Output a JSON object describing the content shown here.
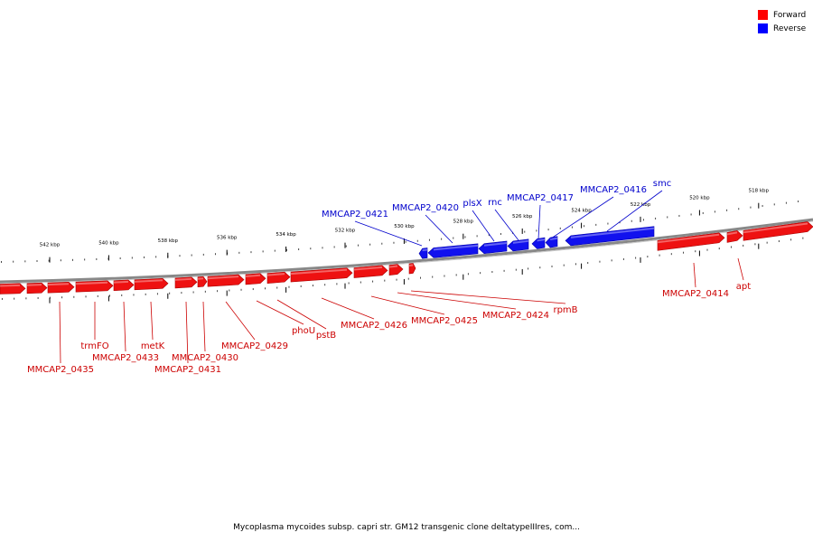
{
  "legend": [
    {
      "label": "Forward",
      "color": "#ff0000"
    },
    {
      "label": "Reverse",
      "color": "#0000ff"
    }
  ],
  "caption": "Mycoplasma mycoides subsp. capri str. GM12 transgenic clone deltatypeIIIres, com...",
  "colors": {
    "forward": "#ee1111",
    "reverse": "#1111ee",
    "forward_label": "#cc0000",
    "reverse_label": "#0000cc",
    "backbone": "#888888"
  },
  "ticks": [
    "542 kbp",
    "540 kbp",
    "538 kbp",
    "536 kbp",
    "534 kbp",
    "532 kbp",
    "530 kbp",
    "528 kbp",
    "526 kbp",
    "524 kbp",
    "522 kbp",
    "520 kbp",
    "518 kbp"
  ],
  "labels": {
    "forward": [
      "MMCAP2_0435",
      "trmFO",
      "MMCAP2_0433",
      "metK",
      "MMCAP2_0431",
      "MMCAP2_0430",
      "MMCAP2_0429",
      "phoU",
      "pstB",
      "MMCAP2_0426",
      "MMCAP2_0425",
      "MMCAP2_0424",
      "rpmB",
      "MMCAP2_0414",
      "apt"
    ],
    "reverse": [
      "MMCAP2_0421",
      "MMCAP2_0420",
      "plsX",
      "rnc",
      "MMCAP2_0417",
      "MMCAP2_0416",
      "smc"
    ]
  }
}
